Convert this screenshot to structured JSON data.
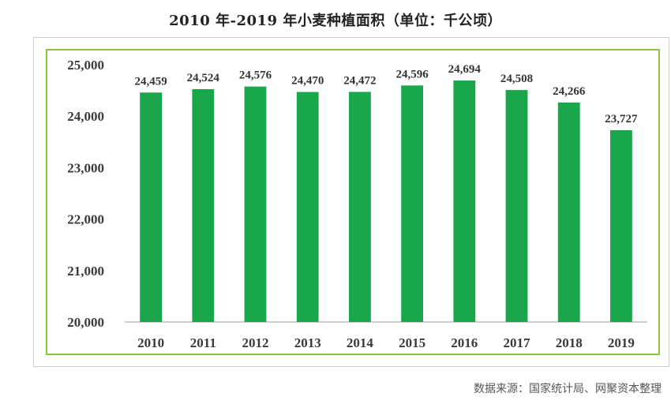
{
  "title": "2010 年-2019 年小麦种植面积（单位：千公顷）",
  "source": "数据来源：国家统计局、网聚资本整理",
  "colors": {
    "bar": "#1aa64b",
    "frame": "#8cc63f",
    "axis": "#bfbfbf"
  },
  "chart_data": {
    "type": "bar",
    "title": "2010 年-2019 年小麦种植面积（单位：千公顷）",
    "xlabel": "",
    "ylabel": "",
    "categories": [
      "2010",
      "2011",
      "2012",
      "2013",
      "2014",
      "2015",
      "2016",
      "2017",
      "2018",
      "2019"
    ],
    "values": [
      24459,
      24524,
      24576,
      24470,
      24472,
      24596,
      24694,
      24508,
      24266,
      23727
    ],
    "value_labels": [
      "24,459",
      "24,524",
      "24,576",
      "24,470",
      "24,472",
      "24,596",
      "24,694",
      "24,508",
      "24,266",
      "23,727"
    ],
    "ylim": [
      20000,
      25000
    ],
    "yticks": [
      20000,
      21000,
      22000,
      23000,
      24000,
      25000
    ],
    "ytick_labels": [
      "20,000",
      "21,000",
      "22,000",
      "23,000",
      "24,000",
      "25,000"
    ],
    "grid": false,
    "legend": "none"
  }
}
